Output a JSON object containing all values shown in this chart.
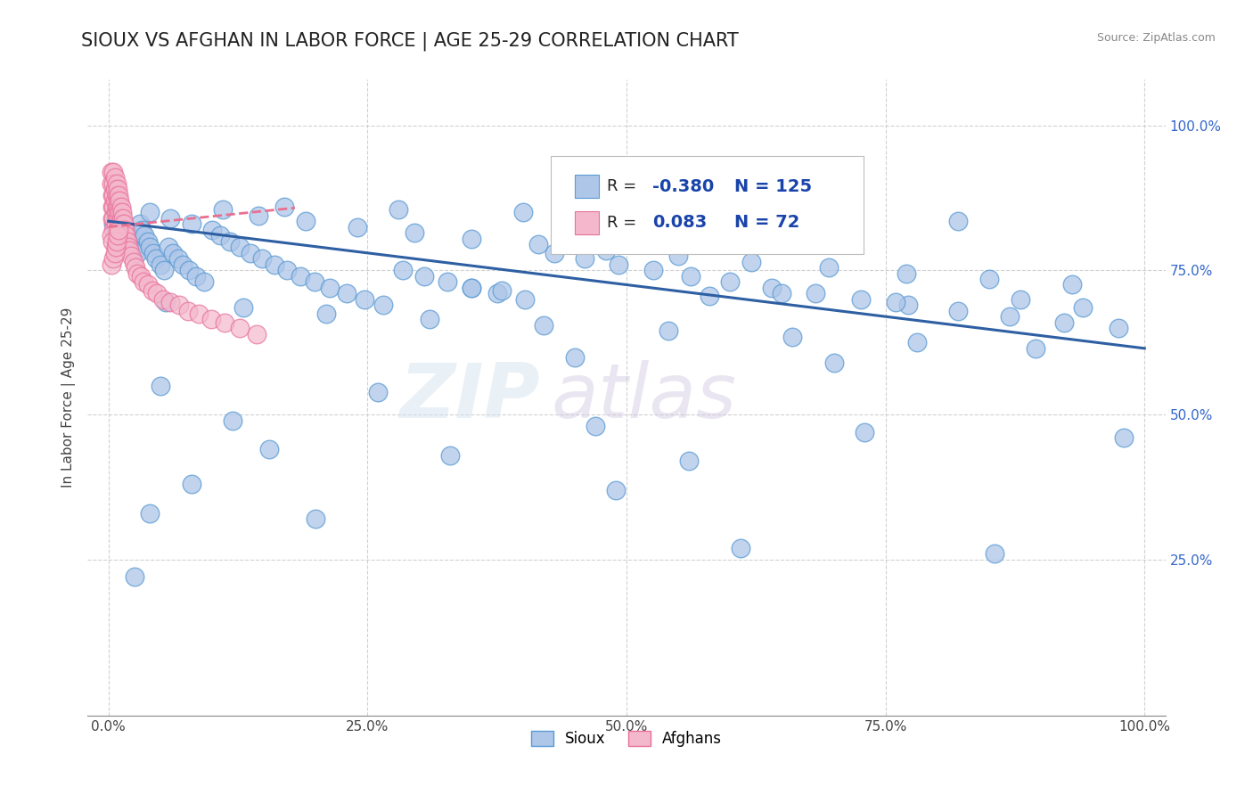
{
  "title": "SIOUX VS AFGHAN IN LABOR FORCE | AGE 25-29 CORRELATION CHART",
  "source_text": "Source: ZipAtlas.com",
  "ylabel": "In Labor Force | Age 25-29",
  "xlim": [
    -0.02,
    1.02
  ],
  "ylim": [
    -0.02,
    1.08
  ],
  "xtick_labels": [
    "0.0%",
    "25.0%",
    "50.0%",
    "75.0%",
    "100.0%"
  ],
  "xtick_vals": [
    0.0,
    0.25,
    0.5,
    0.75,
    1.0
  ],
  "ytick_labels": [
    "25.0%",
    "50.0%",
    "75.0%",
    "100.0%"
  ],
  "ytick_vals": [
    0.25,
    0.5,
    0.75,
    1.0
  ],
  "sioux_color": "#aec6e8",
  "sioux_edge": "#5b9bd5",
  "afghan_color": "#f4b8cc",
  "afghan_edge": "#e8709a",
  "sioux_R": -0.38,
  "sioux_N": 125,
  "afghan_R": 0.083,
  "afghan_N": 72,
  "sioux_line_color": "#2e5fa3",
  "afghan_line_color": "#e87090",
  "background_color": "#ffffff",
  "grid_color": "#cccccc",
  "watermark_zip": "ZIP",
  "watermark_atlas": "atlas",
  "title_fontsize": 15,
  "axis_fontsize": 11,
  "tick_fontsize": 11,
  "legend_R_color": "#1a44aa",
  "sioux_line_x": [
    0.0,
    1.0
  ],
  "sioux_line_y": [
    0.835,
    0.615
  ],
  "afghan_line_x": [
    0.0,
    0.18
  ],
  "afghan_line_y": [
    0.825,
    0.858
  ],
  "sioux_x": [
    0.005,
    0.007,
    0.008,
    0.009,
    0.01,
    0.01,
    0.011,
    0.012,
    0.013,
    0.014,
    0.015,
    0.016,
    0.017,
    0.018,
    0.019,
    0.02,
    0.022,
    0.024,
    0.026,
    0.028,
    0.03,
    0.032,
    0.035,
    0.038,
    0.04,
    0.043,
    0.046,
    0.05,
    0.054,
    0.058,
    0.062,
    0.067,
    0.072,
    0.078,
    0.085,
    0.092,
    0.1,
    0.108,
    0.117,
    0.127,
    0.137,
    0.148,
    0.16,
    0.172,
    0.185,
    0.199,
    0.214,
    0.23,
    0.247,
    0.265,
    0.284,
    0.305,
    0.327,
    0.35,
    0.375,
    0.402,
    0.43,
    0.46,
    0.492,
    0.526,
    0.562,
    0.6,
    0.64,
    0.682,
    0.726,
    0.772,
    0.82,
    0.87,
    0.922,
    0.975,
    0.04,
    0.06,
    0.08,
    0.11,
    0.145,
    0.19,
    0.24,
    0.295,
    0.35,
    0.415,
    0.48,
    0.55,
    0.62,
    0.695,
    0.77,
    0.85,
    0.93,
    0.055,
    0.13,
    0.21,
    0.31,
    0.42,
    0.54,
    0.66,
    0.78,
    0.895,
    0.17,
    0.28,
    0.4,
    0.53,
    0.68,
    0.82,
    0.38,
    0.58,
    0.76,
    0.94,
    0.45,
    0.7,
    0.05,
    0.26,
    0.35,
    0.65,
    0.88,
    0.12,
    0.47,
    0.73,
    0.98,
    0.155,
    0.33,
    0.56,
    0.08,
    0.49,
    0.04,
    0.2,
    0.61,
    0.855,
    0.025
  ],
  "sioux_y": [
    0.83,
    0.84,
    0.825,
    0.835,
    0.82,
    0.845,
    0.815,
    0.83,
    0.81,
    0.825,
    0.805,
    0.82,
    0.8,
    0.815,
    0.795,
    0.81,
    0.8,
    0.79,
    0.785,
    0.78,
    0.83,
    0.82,
    0.81,
    0.8,
    0.79,
    0.78,
    0.77,
    0.76,
    0.75,
    0.79,
    0.78,
    0.77,
    0.76,
    0.75,
    0.74,
    0.73,
    0.82,
    0.81,
    0.8,
    0.79,
    0.78,
    0.77,
    0.76,
    0.75,
    0.74,
    0.73,
    0.72,
    0.71,
    0.7,
    0.69,
    0.75,
    0.74,
    0.73,
    0.72,
    0.71,
    0.7,
    0.78,
    0.77,
    0.76,
    0.75,
    0.74,
    0.73,
    0.72,
    0.71,
    0.7,
    0.69,
    0.68,
    0.67,
    0.66,
    0.65,
    0.85,
    0.84,
    0.83,
    0.855,
    0.845,
    0.835,
    0.825,
    0.815,
    0.805,
    0.795,
    0.785,
    0.775,
    0.765,
    0.755,
    0.745,
    0.735,
    0.725,
    0.695,
    0.685,
    0.675,
    0.665,
    0.655,
    0.645,
    0.635,
    0.625,
    0.615,
    0.86,
    0.855,
    0.85,
    0.845,
    0.84,
    0.835,
    0.715,
    0.705,
    0.695,
    0.685,
    0.6,
    0.59,
    0.55,
    0.54,
    0.72,
    0.71,
    0.7,
    0.49,
    0.48,
    0.47,
    0.46,
    0.44,
    0.43,
    0.42,
    0.38,
    0.37,
    0.33,
    0.32,
    0.27,
    0.26,
    0.22
  ],
  "afghan_x": [
    0.003,
    0.003,
    0.004,
    0.004,
    0.004,
    0.005,
    0.005,
    0.005,
    0.005,
    0.005,
    0.005,
    0.006,
    0.006,
    0.006,
    0.007,
    0.007,
    0.007,
    0.007,
    0.008,
    0.008,
    0.008,
    0.008,
    0.009,
    0.009,
    0.009,
    0.01,
    0.01,
    0.01,
    0.01,
    0.011,
    0.011,
    0.011,
    0.012,
    0.012,
    0.013,
    0.013,
    0.014,
    0.014,
    0.015,
    0.015,
    0.016,
    0.017,
    0.018,
    0.019,
    0.02,
    0.022,
    0.024,
    0.026,
    0.028,
    0.031,
    0.034,
    0.038,
    0.042,
    0.047,
    0.053,
    0.06,
    0.068,
    0.077,
    0.087,
    0.099,
    0.112,
    0.127,
    0.143,
    0.003,
    0.003,
    0.004,
    0.005,
    0.006,
    0.007,
    0.008,
    0.009,
    0.01
  ],
  "afghan_y": [
    0.92,
    0.9,
    0.88,
    0.86,
    0.84,
    0.92,
    0.9,
    0.88,
    0.86,
    0.84,
    0.82,
    0.91,
    0.89,
    0.87,
    0.85,
    0.83,
    0.81,
    0.79,
    0.9,
    0.88,
    0.86,
    0.84,
    0.89,
    0.87,
    0.85,
    0.88,
    0.86,
    0.84,
    0.82,
    0.87,
    0.85,
    0.83,
    0.86,
    0.84,
    0.85,
    0.83,
    0.84,
    0.82,
    0.83,
    0.81,
    0.82,
    0.81,
    0.8,
    0.79,
    0.785,
    0.775,
    0.765,
    0.755,
    0.745,
    0.74,
    0.73,
    0.725,
    0.715,
    0.71,
    0.7,
    0.695,
    0.69,
    0.68,
    0.675,
    0.665,
    0.66,
    0.65,
    0.64,
    0.81,
    0.76,
    0.8,
    0.77,
    0.78,
    0.79,
    0.8,
    0.81,
    0.82
  ]
}
